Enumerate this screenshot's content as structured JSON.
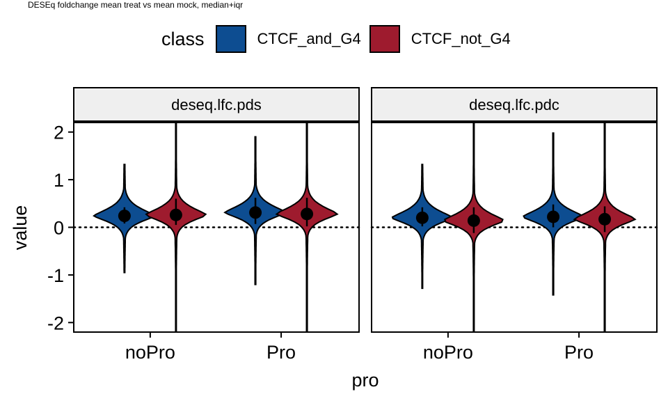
{
  "chart_data": {
    "type": "violin",
    "title": "DESEq foldchange mean treat vs mean mock, median+iqr",
    "xlabel": "pro",
    "ylabel": "value",
    "ylim": [
      -2.2,
      2.2
    ],
    "yticks": [
      -2,
      -1,
      0,
      1,
      2
    ],
    "reference_line": 0,
    "categories": [
      "noPro",
      "Pro"
    ],
    "legend": {
      "title": "class",
      "position": "top",
      "entries": [
        {
          "name": "CTCF_and_G4",
          "color": "#0D4D91"
        },
        {
          "name": "CTCF_not_G4",
          "color": "#9E1B2E"
        }
      ]
    },
    "panels": [
      {
        "name": "deseq.lfc.pds",
        "groups": [
          {
            "category": "noPro",
            "class": "CTCF_and_G4",
            "median": 0.24,
            "q1": 0.08,
            "q3": 0.42,
            "min": -0.95,
            "max": 1.32
          },
          {
            "category": "noPro",
            "class": "CTCF_not_G4",
            "median": 0.26,
            "q1": 0.05,
            "q3": 0.6,
            "min": -2.2,
            "max": 2.2
          },
          {
            "category": "Pro",
            "class": "CTCF_and_G4",
            "median": 0.31,
            "q1": 0.07,
            "q3": 0.62,
            "min": -1.2,
            "max": 1.9
          },
          {
            "category": "Pro",
            "class": "CTCF_not_G4",
            "median": 0.28,
            "q1": 0.02,
            "q3": 0.62,
            "min": -2.2,
            "max": 2.2
          }
        ]
      },
      {
        "name": "deseq.lfc.pdc",
        "groups": [
          {
            "category": "noPro",
            "class": "CTCF_and_G4",
            "median": 0.2,
            "q1": 0.02,
            "q3": 0.42,
            "min": -1.28,
            "max": 1.32
          },
          {
            "category": "noPro",
            "class": "CTCF_not_G4",
            "median": 0.14,
            "q1": -0.12,
            "q3": 0.42,
            "min": -2.2,
            "max": 2.2
          },
          {
            "category": "Pro",
            "class": "CTCF_and_G4",
            "median": 0.22,
            "q1": 0.0,
            "q3": 0.48,
            "min": -1.42,
            "max": 1.98
          },
          {
            "category": "Pro",
            "class": "CTCF_not_G4",
            "median": 0.17,
            "q1": -0.1,
            "q3": 0.44,
            "min": -2.2,
            "max": 2.2
          }
        ]
      }
    ]
  }
}
